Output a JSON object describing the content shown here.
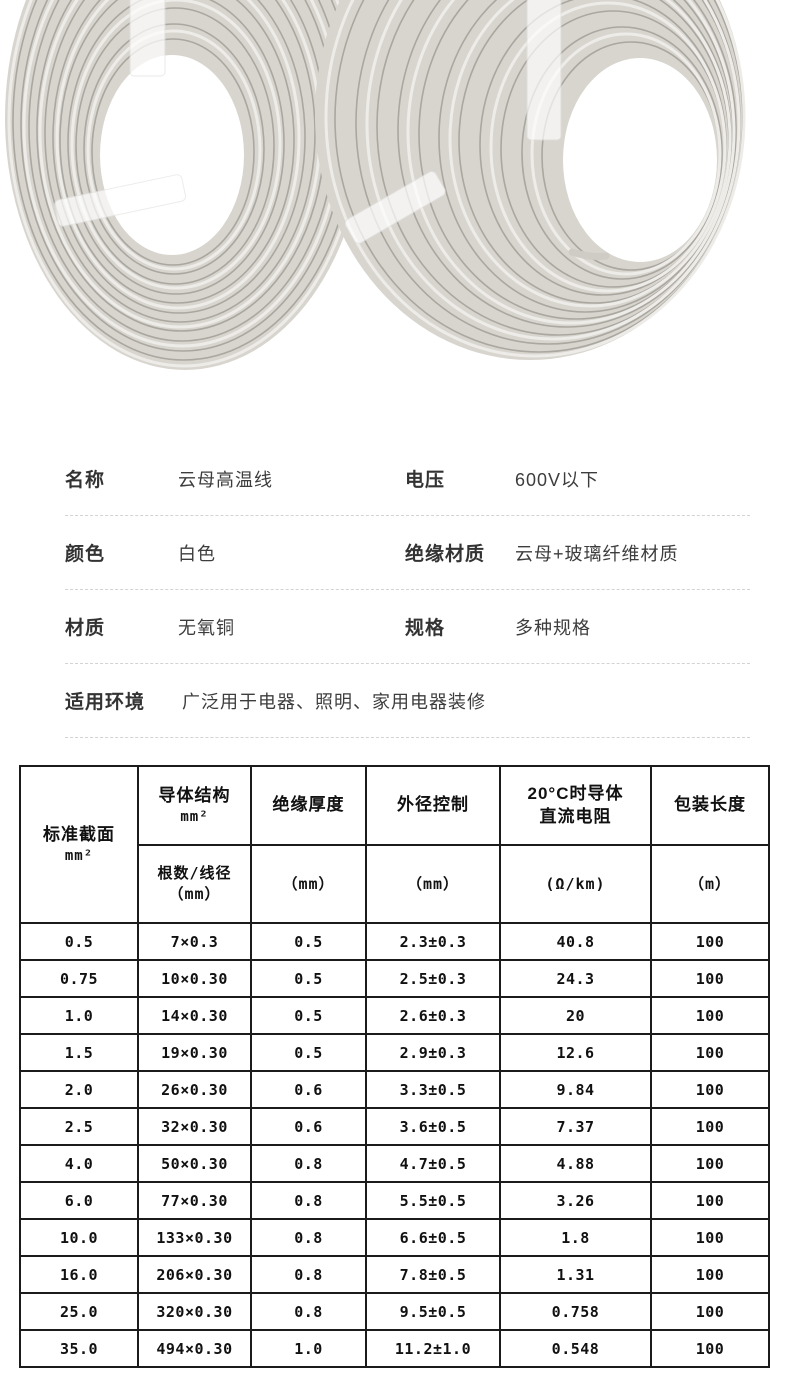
{
  "photo": {
    "description": "two coils of white mica high-temperature wire",
    "cable_base_color": "#d8d5cf",
    "cable_highlight_color": "#eeece8",
    "cable_gap_color": "#a9a79f",
    "background_color": "#ffffff"
  },
  "specs": {
    "pairs": [
      [
        {
          "label": "名称",
          "value": "云母高温线"
        },
        {
          "label": "电压",
          "value": "600V以下"
        }
      ],
      [
        {
          "label": "颜色",
          "value": "白色"
        },
        {
          "label": "绝缘材质",
          "value": "云母+玻璃纤维材质"
        }
      ],
      [
        {
          "label": "材质",
          "value": "无氧铜"
        },
        {
          "label": "规格",
          "value": "多种规格"
        }
      ]
    ],
    "full_row": {
      "label": "适用环境",
      "value": "广泛用于电器、照明、家用电器装修"
    }
  },
  "table": {
    "columns": [
      {
        "title_lines": [
          "标准截面",
          "mm²"
        ],
        "unit_lines": []
      },
      {
        "title_lines": [
          "导体结构",
          "mm²"
        ],
        "unit_lines": [
          "根数/线径",
          "（mm）"
        ]
      },
      {
        "title_lines": [
          "绝缘厚度"
        ],
        "unit_lines": [
          "（mm）"
        ]
      },
      {
        "title_lines": [
          "外径控制"
        ],
        "unit_lines": [
          "（mm）"
        ]
      },
      {
        "title_lines": [
          "20°C时导体",
          "直流电阻"
        ],
        "unit_lines": [
          "(Ω/km)"
        ]
      },
      {
        "title_lines": [
          "包装长度"
        ],
        "unit_lines": [
          "（m）"
        ]
      }
    ],
    "rows": [
      [
        "0.5",
        "7×0.3",
        "0.5",
        "2.3±0.3",
        "40.8",
        "100"
      ],
      [
        "0.75",
        "10×0.30",
        "0.5",
        "2.5±0.3",
        "24.3",
        "100"
      ],
      [
        "1.0",
        "14×0.30",
        "0.5",
        "2.6±0.3",
        "20",
        "100"
      ],
      [
        "1.5",
        "19×0.30",
        "0.5",
        "2.9±0.3",
        "12.6",
        "100"
      ],
      [
        "2.0",
        "26×0.30",
        "0.6",
        "3.3±0.5",
        "9.84",
        "100"
      ],
      [
        "2.5",
        "32×0.30",
        "0.6",
        "3.6±0.5",
        "7.37",
        "100"
      ],
      [
        "4.0",
        "50×0.30",
        "0.8",
        "4.7±0.5",
        "4.88",
        "100"
      ],
      [
        "6.0",
        "77×0.30",
        "0.8",
        "5.5±0.5",
        "3.26",
        "100"
      ],
      [
        "10.0",
        "133×0.30",
        "0.8",
        "6.6±0.5",
        "1.8",
        "100"
      ],
      [
        "16.0",
        "206×0.30",
        "0.8",
        "7.8±0.5",
        "1.31",
        "100"
      ],
      [
        "25.0",
        "320×0.30",
        "0.8",
        "9.5±0.5",
        "0.758",
        "100"
      ],
      [
        "35.0",
        "494×0.30",
        "1.0",
        "11.2±1.0",
        "0.548",
        "100"
      ]
    ]
  }
}
